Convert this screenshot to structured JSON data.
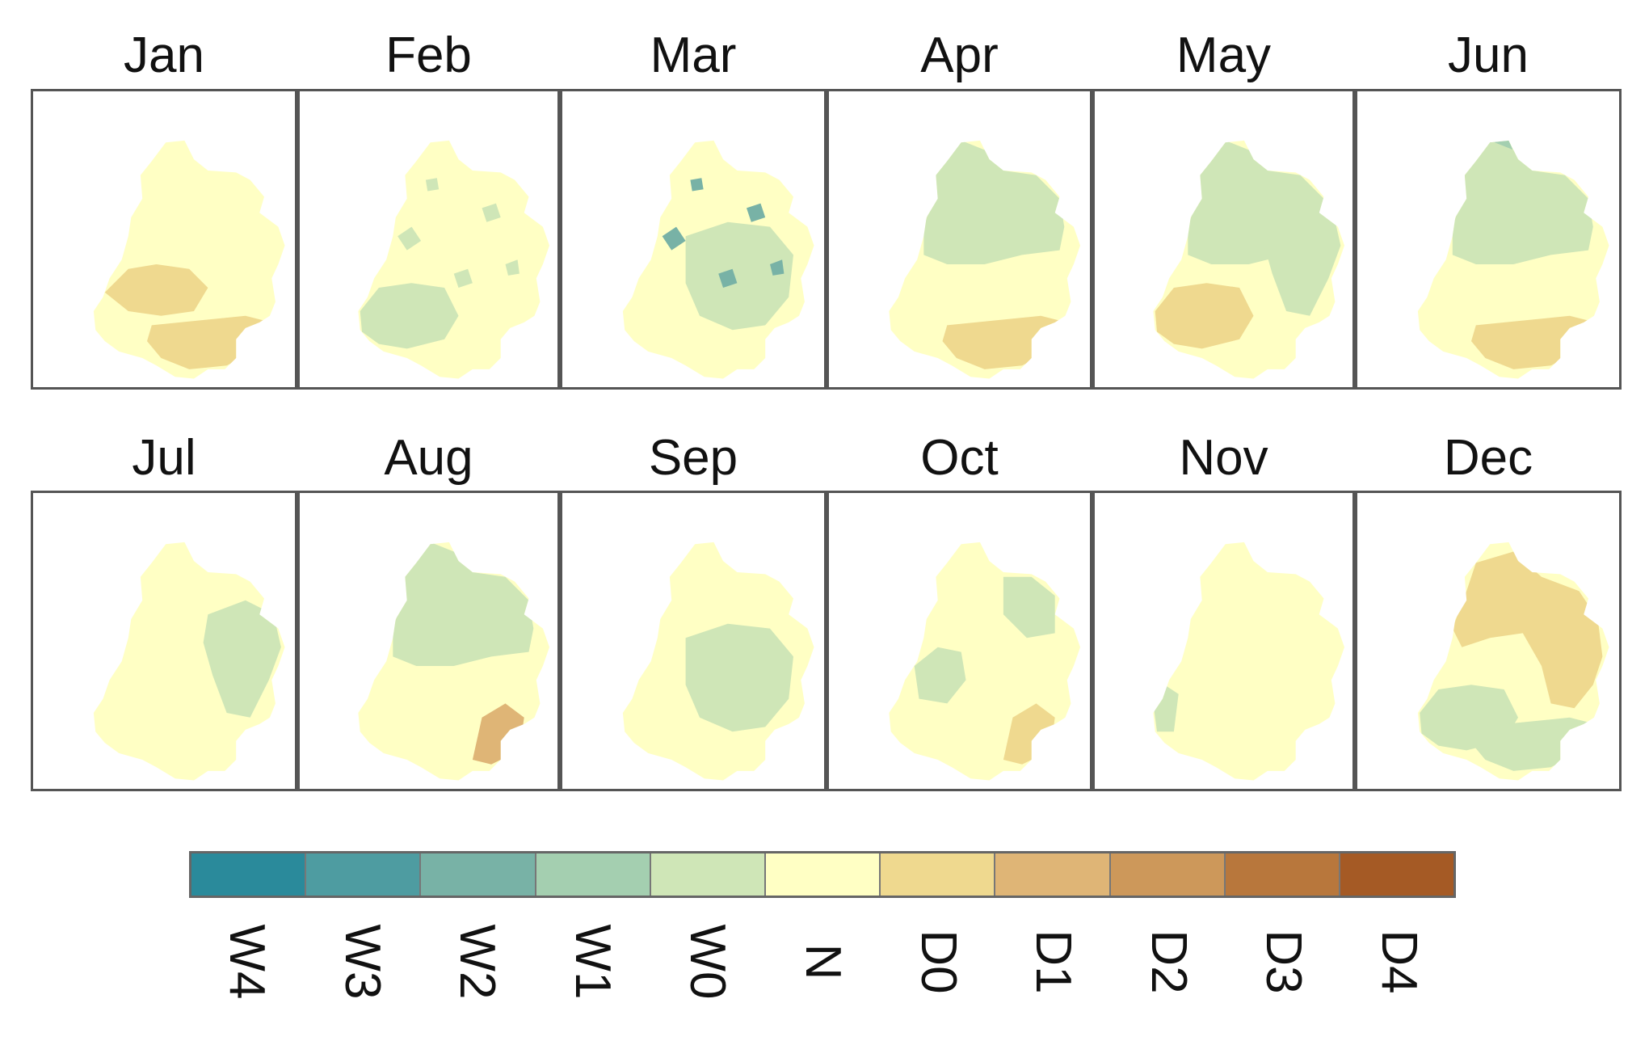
{
  "months": [
    "Jan",
    "Feb",
    "Mar",
    "Apr",
    "May",
    "Jun",
    "Jul",
    "Aug",
    "Sep",
    "Oct",
    "Nov",
    "Dec"
  ],
  "legend": {
    "classes": [
      "W4",
      "W3",
      "W2",
      "W1",
      "W0",
      "N",
      "D0",
      "D1",
      "D2",
      "D3",
      "D4"
    ],
    "colors": [
      "#2a8a9b",
      "#4e9ca1",
      "#78b2a6",
      "#a4cfb0",
      "#cfe6b7",
      "#ffffc4",
      "#efd98f",
      "#dfb576",
      "#cd985a",
      "#b8773c",
      "#a55a25"
    ]
  },
  "panels": [
    {
      "month": "Jan",
      "dominant": "N",
      "regions": [
        {
          "class": "D0",
          "area": "west-central"
        },
        {
          "class": "D0",
          "area": "south"
        }
      ]
    },
    {
      "month": "Feb",
      "dominant": "N",
      "regions": [
        {
          "class": "W0",
          "area": "southwest"
        },
        {
          "class": "W0",
          "area": "scattered"
        }
      ]
    },
    {
      "month": "Mar",
      "dominant": "N",
      "regions": [
        {
          "class": "W0",
          "area": "center-east"
        },
        {
          "class": "W2",
          "area": "scattered"
        }
      ]
    },
    {
      "month": "Apr",
      "dominant": "N",
      "regions": [
        {
          "class": "W0",
          "area": "north"
        },
        {
          "class": "D0",
          "area": "south"
        }
      ]
    },
    {
      "month": "May",
      "dominant": "N",
      "regions": [
        {
          "class": "W0",
          "area": "north"
        },
        {
          "class": "W0",
          "area": "east"
        },
        {
          "class": "D0",
          "area": "southwest"
        }
      ]
    },
    {
      "month": "Jun",
      "dominant": "N",
      "regions": [
        {
          "class": "W1",
          "area": "north tip"
        },
        {
          "class": "W0",
          "area": "north"
        },
        {
          "class": "D0",
          "area": "south"
        }
      ]
    },
    {
      "month": "Jul",
      "dominant": "N",
      "regions": [
        {
          "class": "W0",
          "area": "east"
        }
      ]
    },
    {
      "month": "Aug",
      "dominant": "N",
      "regions": [
        {
          "class": "W0",
          "area": "north"
        },
        {
          "class": "D1",
          "area": "southeast"
        }
      ]
    },
    {
      "month": "Sep",
      "dominant": "N",
      "regions": [
        {
          "class": "W0",
          "area": "center-east"
        }
      ]
    },
    {
      "month": "Oct",
      "dominant": "N",
      "regions": [
        {
          "class": "W0",
          "area": "west-center"
        },
        {
          "class": "W0",
          "area": "northeast"
        },
        {
          "class": "D0",
          "area": "southeast"
        }
      ]
    },
    {
      "month": "Nov",
      "dominant": "N",
      "regions": [
        {
          "class": "W0",
          "area": "west"
        }
      ]
    },
    {
      "month": "Dec",
      "dominant": "N",
      "regions": [
        {
          "class": "D0",
          "area": "north-east"
        },
        {
          "class": "W0",
          "area": "southwest"
        },
        {
          "class": "W0",
          "area": "south"
        }
      ]
    }
  ]
}
